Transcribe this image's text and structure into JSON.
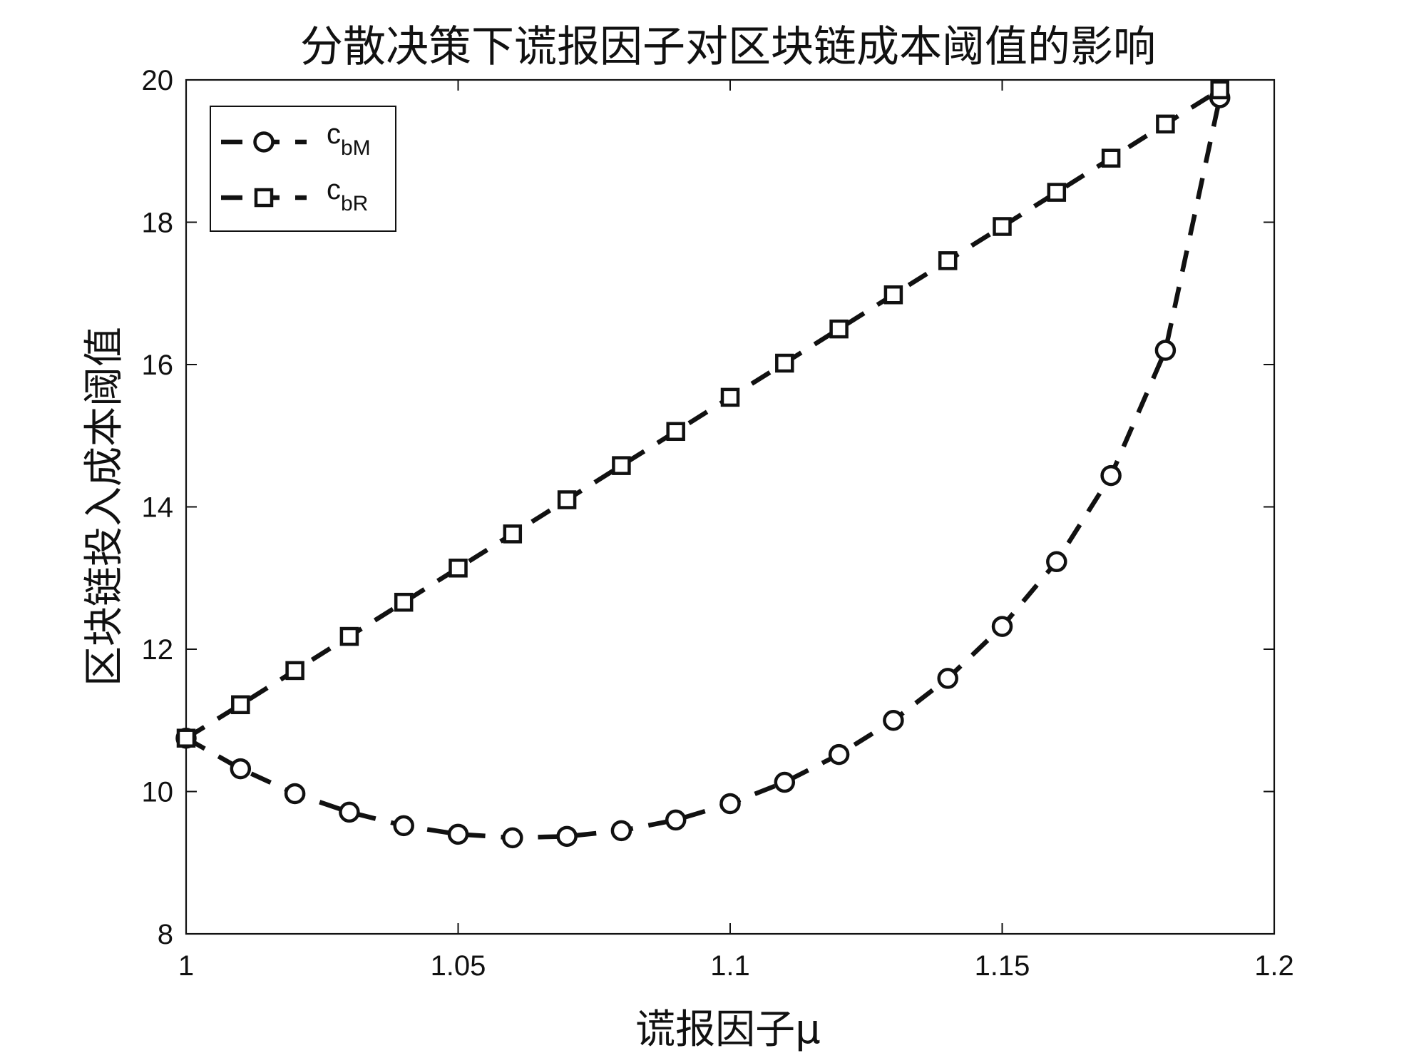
{
  "chart_data": {
    "type": "line",
    "title": "分散决策下谎报因子对区块链成本阈值的影响",
    "xlabel": "谎报因子μ",
    "ylabel": "区块链投入成本阈值",
    "xlim": [
      1,
      1.2
    ],
    "ylim": [
      8,
      20
    ],
    "xticks": [
      "1",
      "1.05",
      "1.1",
      "1.15",
      "1.2"
    ],
    "yticks": [
      "8",
      "10",
      "12",
      "14",
      "16",
      "18",
      "20"
    ],
    "grid": false,
    "legend_position": "top-left",
    "x": [
      1.0,
      1.01,
      1.02,
      1.03,
      1.04,
      1.05,
      1.06,
      1.07,
      1.08,
      1.09,
      1.1,
      1.11,
      1.12,
      1.13,
      1.14,
      1.15,
      1.16,
      1.17,
      1.18,
      1.19
    ],
    "series": [
      {
        "name": "cbM",
        "legend_main": "c",
        "legend_sub": "bM",
        "marker": "circle",
        "line_style": "dashed",
        "color": "#111111",
        "values": [
          10.75,
          10.32,
          9.97,
          9.71,
          9.52,
          9.4,
          9.35,
          9.37,
          9.45,
          9.6,
          9.83,
          10.13,
          10.52,
          11.0,
          11.59,
          12.32,
          13.23,
          14.44,
          16.2,
          19.75
        ]
      },
      {
        "name": "cbR",
        "legend_main": "c",
        "legend_sub": "bR",
        "marker": "square",
        "line_style": "dashed",
        "color": "#111111",
        "values": [
          10.75,
          11.22,
          11.7,
          12.18,
          12.66,
          13.14,
          13.62,
          14.1,
          14.58,
          15.06,
          15.54,
          16.02,
          16.5,
          16.98,
          17.46,
          17.94,
          18.42,
          18.9,
          19.38,
          19.86
        ]
      }
    ]
  }
}
